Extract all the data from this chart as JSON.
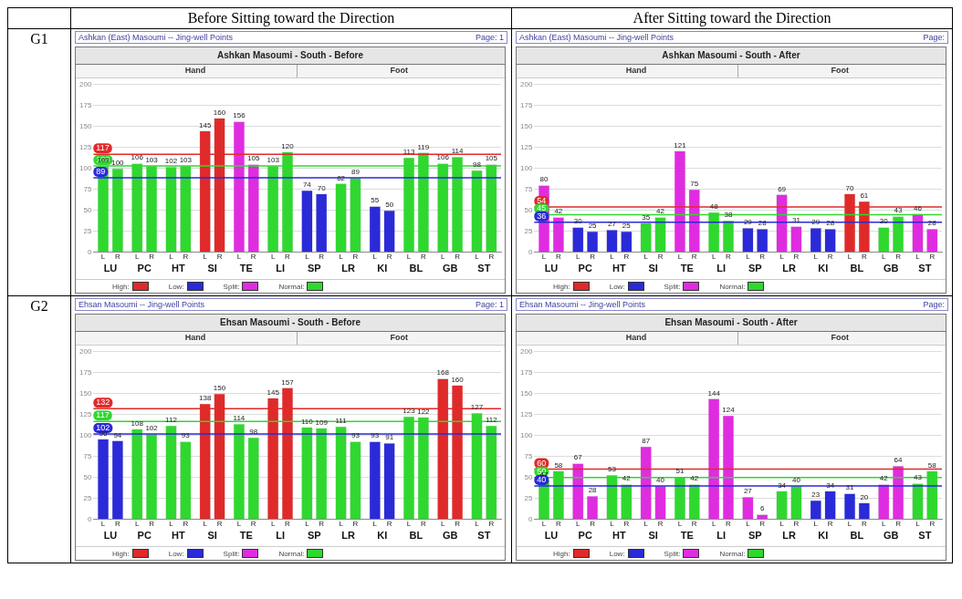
{
  "chart_data": [
    {
      "type": "other",
      "annotations": [
        "Before Sitting toward the Direction",
        "After Sitting toward the Direction",
        "G1",
        "G2"
      ]
    },
    {
      "type": "bar",
      "title": "Ashkan Masoumi - South - Before",
      "subtitle": "Ashkan (East) Masoumi -- Jing-well Points",
      "annotations": [
        "Page: 1",
        "Hand",
        "Foot",
        "High:",
        "Low:",
        "Split:",
        "Normal:"
      ],
      "categories": [
        "LU",
        "PC",
        "HT",
        "SI",
        "TE",
        "LI",
        "SP",
        "LR",
        "KI",
        "BL",
        "GB",
        "ST"
      ],
      "series": [
        {
          "name": "L",
          "values": [
            103,
            106,
            102,
            145,
            156,
            103,
            74,
            82,
            55,
            113,
            106,
            98
          ],
          "colors": [
            "#2fd82f",
            "#2fd82f",
            "#2fd82f",
            "#e02a2a",
            "#e02ce0",
            "#2fd82f",
            "#2a2ad8",
            "#2fd82f",
            "#2a2ad8",
            "#2fd82f",
            "#2fd82f",
            "#2fd82f"
          ]
        },
        {
          "name": "R",
          "values": [
            100,
            103,
            103,
            160,
            105,
            120,
            70,
            89,
            50,
            119,
            114,
            105
          ],
          "colors": [
            "#2fd82f",
            "#2fd82f",
            "#2fd82f",
            "#e02a2a",
            "#e02ce0",
            "#2fd82f",
            "#2a2ad8",
            "#2fd82f",
            "#2a2ad8",
            "#2fd82f",
            "#2fd82f",
            "#2fd82f"
          ]
        }
      ],
      "ref_lines": [
        {
          "axis": "y",
          "value": 117,
          "label": "117",
          "color": "#e02a2a"
        },
        {
          "axis": "y",
          "value": 103,
          "label": "103",
          "color": "#2fd82f"
        },
        {
          "axis": "y",
          "value": 89,
          "label": "89",
          "color": "#2a2ad8"
        }
      ],
      "ylim": [
        0,
        200
      ],
      "yticks": [
        0,
        25,
        50,
        75,
        100,
        125,
        150,
        175,
        200
      ],
      "grid": "y",
      "data_labels": true
    },
    {
      "type": "bar",
      "title": "Ashkan Masoumi - South - After",
      "subtitle": "Ashkan (East) Masoumi -- Jing-well Points",
      "annotations": [
        "Page:",
        "Hand",
        "Foot",
        "High:",
        "Low:",
        "Split:",
        "Normal:"
      ],
      "categories": [
        "LU",
        "PC",
        "HT",
        "SI",
        "TE",
        "LI",
        "SP",
        "LR",
        "KI",
        "BL",
        "GB",
        "ST"
      ],
      "series": [
        {
          "name": "L",
          "values": [
            80,
            30,
            27,
            35,
            121,
            48,
            29,
            69,
            29,
            70,
            30,
            46
          ],
          "colors": [
            "#e02ce0",
            "#2a2ad8",
            "#2a2ad8",
            "#2fd82f",
            "#e02ce0",
            "#2fd82f",
            "#2a2ad8",
            "#e02ce0",
            "#2a2ad8",
            "#e02a2a",
            "#2fd82f",
            "#e02ce0"
          ]
        },
        {
          "name": "R",
          "values": [
            42,
            25,
            25,
            42,
            75,
            38,
            28,
            31,
            28,
            61,
            43,
            28
          ],
          "colors": [
            "#e02ce0",
            "#2a2ad8",
            "#2a2ad8",
            "#2fd82f",
            "#e02ce0",
            "#2fd82f",
            "#2a2ad8",
            "#e02ce0",
            "#2a2ad8",
            "#e02a2a",
            "#2fd82f",
            "#e02ce0"
          ]
        }
      ],
      "ref_lines": [
        {
          "axis": "y",
          "value": 54,
          "label": "54",
          "color": "#e02a2a"
        },
        {
          "axis": "y",
          "value": 45,
          "label": "45",
          "color": "#2fd82f"
        },
        {
          "axis": "y",
          "value": 36,
          "label": "36",
          "color": "#2a2ad8"
        }
      ],
      "ylim": [
        0,
        200
      ],
      "yticks": [
        0,
        25,
        50,
        75,
        100,
        125,
        150,
        175,
        200
      ],
      "grid": "y",
      "data_labels": true
    },
    {
      "type": "bar",
      "title": "Ehsan Masoumi - South - Before",
      "subtitle": "Ehsan Masoumi -- Jing-well Points",
      "annotations": [
        "Page: 1",
        "Hand",
        "Foot",
        "High:",
        "Low:",
        "Split:",
        "Normal:"
      ],
      "categories": [
        "LU",
        "PC",
        "HT",
        "SI",
        "TE",
        "LI",
        "SP",
        "LR",
        "KI",
        "BL",
        "GB",
        "ST"
      ],
      "series": [
        {
          "name": "L",
          "values": [
            96,
            108,
            112,
            138,
            114,
            145,
            110,
            111,
            93,
            123,
            168,
            127
          ],
          "colors": [
            "#2a2ad8",
            "#2fd82f",
            "#2fd82f",
            "#e02a2a",
            "#2fd82f",
            "#e02a2a",
            "#2fd82f",
            "#2fd82f",
            "#2a2ad8",
            "#2fd82f",
            "#e02a2a",
            "#2fd82f"
          ]
        },
        {
          "name": "R",
          "values": [
            94,
            102,
            93,
            150,
            98,
            157,
            109,
            93,
            91,
            122,
            160,
            112
          ],
          "colors": [
            "#2a2ad8",
            "#2fd82f",
            "#2fd82f",
            "#e02a2a",
            "#2fd82f",
            "#e02a2a",
            "#2fd82f",
            "#2fd82f",
            "#2a2ad8",
            "#2fd82f",
            "#e02a2a",
            "#2fd82f"
          ]
        }
      ],
      "ref_lines": [
        {
          "axis": "y",
          "value": 132,
          "label": "132",
          "color": "#e02a2a"
        },
        {
          "axis": "y",
          "value": 117,
          "label": "117",
          "color": "#2fd82f"
        },
        {
          "axis": "y",
          "value": 102,
          "label": "102",
          "color": "#2a2ad8"
        }
      ],
      "ylim": [
        0,
        200
      ],
      "yticks": [
        0,
        25,
        50,
        75,
        100,
        125,
        150,
        175,
        200
      ],
      "grid": "y",
      "data_labels": true
    },
    {
      "type": "bar",
      "title": "Ehsan Masoumi - South - After",
      "subtitle": "Ehsan Masoumi -- Jing-well Points",
      "annotations": [
        "Page:",
        "Hand",
        "Foot",
        "High:",
        "Low:",
        "Split:",
        "Normal:"
      ],
      "categories": [
        "LU",
        "PC",
        "HT",
        "SI",
        "TE",
        "LI",
        "SP",
        "LR",
        "KI",
        "BL",
        "GB",
        "ST"
      ],
      "series": [
        {
          "name": "L",
          "values": [
            47,
            67,
            53,
            87,
            51,
            144,
            27,
            34,
            23,
            31,
            42,
            43
          ],
          "colors": [
            "#2fd82f",
            "#e02ce0",
            "#2fd82f",
            "#e02ce0",
            "#2fd82f",
            "#e02ce0",
            "#e02ce0",
            "#2fd82f",
            "#2a2ad8",
            "#2a2ad8",
            "#e02ce0",
            "#2fd82f"
          ]
        },
        {
          "name": "R",
          "values": [
            58,
            28,
            42,
            40,
            42,
            124,
            6,
            40,
            34,
            20,
            64,
            58
          ],
          "colors": [
            "#2fd82f",
            "#e02ce0",
            "#2fd82f",
            "#e02ce0",
            "#2fd82f",
            "#e02ce0",
            "#e02ce0",
            "#2fd82f",
            "#2a2ad8",
            "#2a2ad8",
            "#e02ce0",
            "#2fd82f"
          ]
        }
      ],
      "ref_lines": [
        {
          "axis": "y",
          "value": 60,
          "label": "60",
          "color": "#e02a2a"
        },
        {
          "axis": "y",
          "value": 50,
          "label": "50",
          "color": "#2fd82f"
        },
        {
          "axis": "y",
          "value": 40,
          "label": "40",
          "color": "#2a2ad8"
        }
      ],
      "ylim": [
        0,
        200
      ],
      "yticks": [
        0,
        25,
        50,
        75,
        100,
        125,
        150,
        175,
        200
      ],
      "grid": "y",
      "data_labels": true
    }
  ]
}
